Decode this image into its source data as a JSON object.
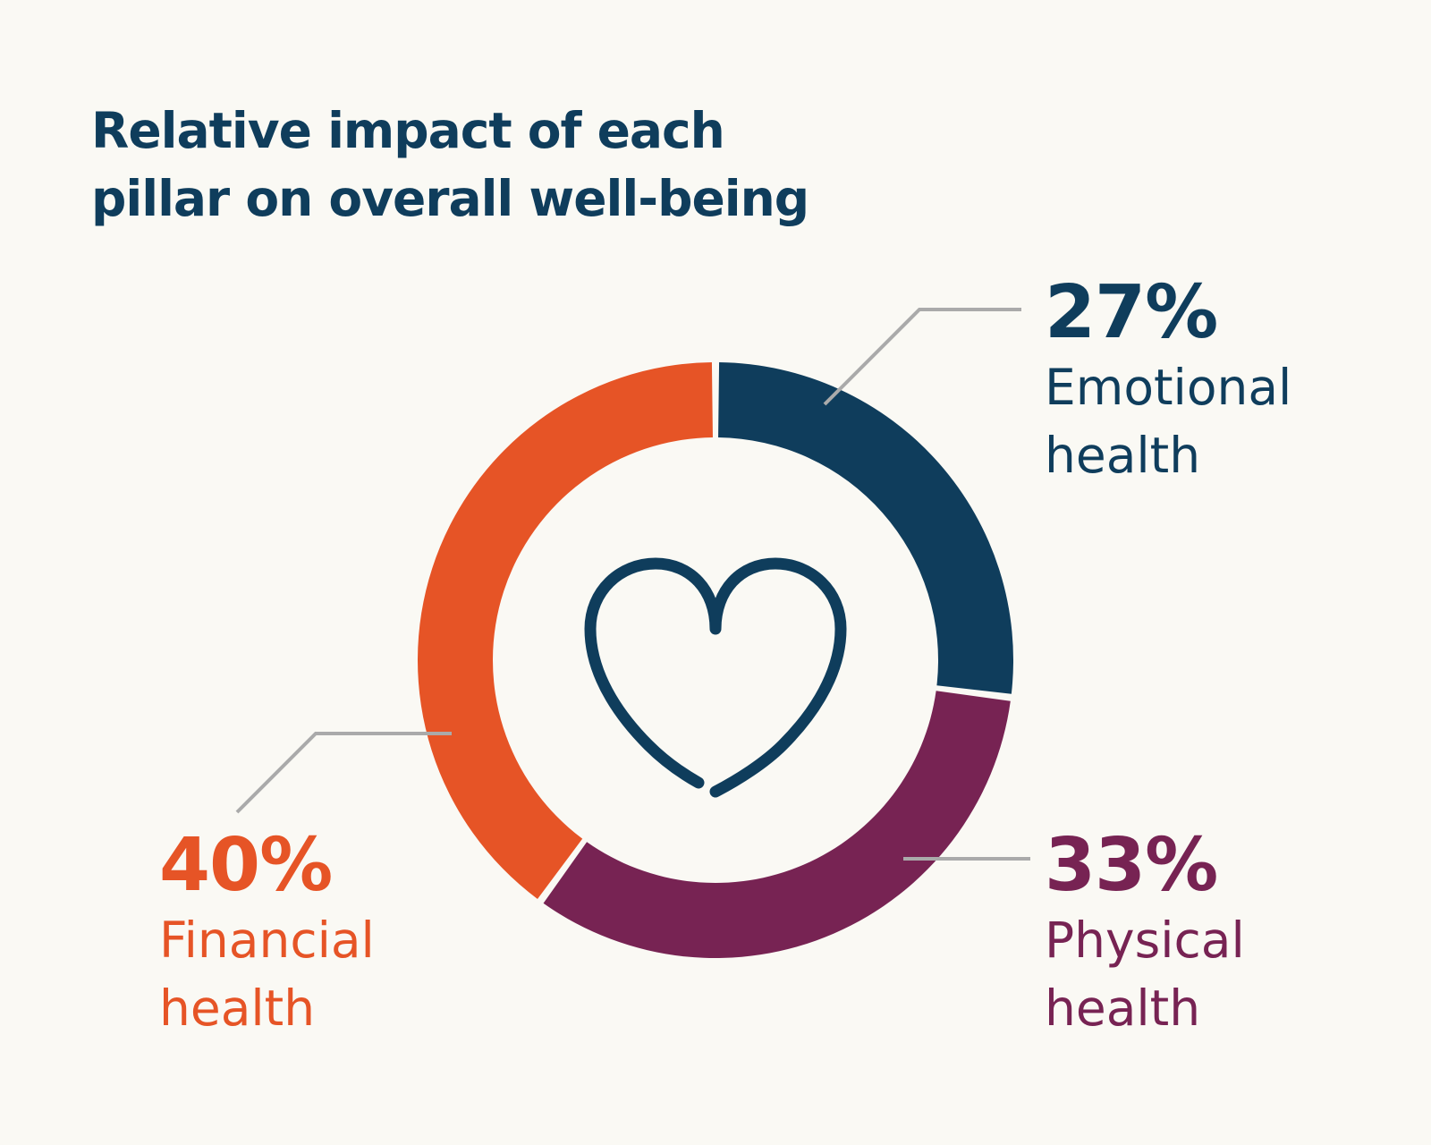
{
  "title_lines": [
    "Relative impact of each",
    "pillar on overall well-being"
  ],
  "colors": {
    "background": "#faf9f4",
    "emotional": "#0f3d5c",
    "physical": "#772353",
    "financial": "#e65426",
    "leader": "#aaaaaa",
    "heart": "#0f3d5c"
  },
  "center_icon": "heart-icon",
  "chart_data": {
    "type": "pie",
    "donut": true,
    "title": "Relative impact of each pillar on overall well-being",
    "slices": [
      {
        "label": "Emotional health",
        "value": 27,
        "display": "27%",
        "name_lines": [
          "Emotional",
          "health"
        ],
        "color": "#0f3d5c"
      },
      {
        "label": "Physical health",
        "value": 33,
        "display": "33%",
        "name_lines": [
          "Physical",
          "health"
        ],
        "color": "#772353"
      },
      {
        "label": "Financial health",
        "value": 40,
        "display": "40%",
        "name_lines": [
          "Financial",
          "health"
        ],
        "color": "#e65426"
      }
    ]
  }
}
